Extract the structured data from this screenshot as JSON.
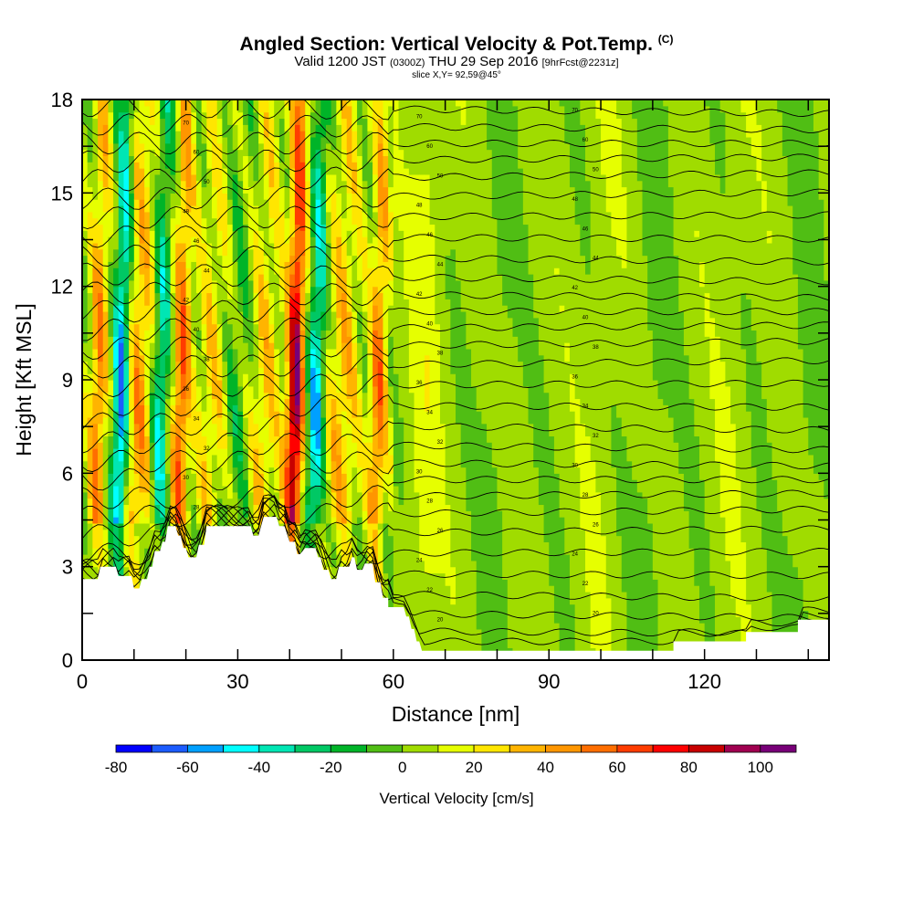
{
  "header": {
    "title": "Angled Section: Vertical Velocity & Pot.Temp.",
    "title_mark": "(C)",
    "valid_prefix": "Valid 1200 JST",
    "valid_utc": "(0300Z)",
    "valid_date": "THU 29 Sep 2016",
    "forecast_tag": "[9hrFcst@2231z]",
    "slice": "slice X,Y= 92,59@45°"
  },
  "chart_data": {
    "type": "heatmap",
    "xlabel": "Distance [nm]",
    "ylabel": "Height [Kft MSL]",
    "xlim": [
      0,
      144
    ],
    "ylim": [
      0,
      18
    ],
    "x_ticks": [
      "0",
      "30",
      "60",
      "90",
      "120"
    ],
    "x_tick_values": [
      0,
      30,
      60,
      90,
      120
    ],
    "y_ticks": [
      "0",
      "3",
      "6",
      "9",
      "12",
      "15",
      "18"
    ],
    "y_tick_values": [
      0,
      3,
      6,
      9,
      12,
      15,
      18
    ],
    "colorbar": {
      "label": "Vertical Velocity [cm/s]",
      "tick_labels": [
        "-80",
        "-60",
        "-40",
        "-20",
        "0",
        "20",
        "40",
        "60",
        "80",
        "100"
      ],
      "tick_values": [
        -80,
        -60,
        -40,
        -20,
        0,
        20,
        40,
        60,
        80,
        100
      ],
      "range": [
        -80,
        110
      ],
      "step": 10,
      "colors": [
        "#0000ff",
        "#1c5cff",
        "#00a0ff",
        "#00ffff",
        "#00e6b4",
        "#00c864",
        "#00b428",
        "#50be14",
        "#a0dc00",
        "#e6ff00",
        "#ffe600",
        "#ffb400",
        "#ff9600",
        "#ff6e00",
        "#ff3c00",
        "#ff0000",
        "#c80000",
        "#a00050",
        "#780078"
      ]
    },
    "vertical_velocity_features": [
      {
        "x_nm": 3,
        "w_cm_s": 45,
        "kind": "updraft"
      },
      {
        "x_nm": 7.5,
        "w_cm_s": -75,
        "kind": "downdraft"
      },
      {
        "x_nm": 10.5,
        "w_cm_s": 40,
        "kind": "updraft"
      },
      {
        "x_nm": 15,
        "w_cm_s": -45,
        "kind": "downdraft"
      },
      {
        "x_nm": 19,
        "w_cm_s": 55,
        "kind": "updraft"
      },
      {
        "x_nm": 25,
        "w_cm_s": 22,
        "kind": "updraft"
      },
      {
        "x_nm": 30,
        "w_cm_s": -15,
        "kind": "downdraft"
      },
      {
        "x_nm": 35,
        "w_cm_s": 25,
        "kind": "updraft"
      },
      {
        "x_nm": 41,
        "w_cm_s": 95,
        "kind": "updraft"
      },
      {
        "x_nm": 45,
        "w_cm_s": -55,
        "kind": "downdraft"
      },
      {
        "x_nm": 50,
        "w_cm_s": 30,
        "kind": "updraft"
      },
      {
        "x_nm": 57,
        "w_cm_s": 48,
        "kind": "updraft"
      },
      {
        "x_nm": 66,
        "w_cm_s": 15,
        "kind": "updraft"
      },
      {
        "x_nm": 80,
        "w_cm_s": -8,
        "kind": "downdraft"
      },
      {
        "x_nm": 100,
        "w_cm_s": 5,
        "kind": "updraft"
      },
      {
        "x_nm": 110,
        "w_cm_s": -10,
        "kind": "downdraft"
      },
      {
        "x_nm": 125,
        "w_cm_s": 4,
        "kind": "updraft"
      },
      {
        "x_nm": 140,
        "w_cm_s": -10,
        "kind": "downdraft"
      }
    ],
    "terrain_kft": [
      [
        0,
        2.6
      ],
      [
        3,
        2.6
      ],
      [
        3.5,
        3.0
      ],
      [
        6.5,
        3.0
      ],
      [
        7,
        2.7
      ],
      [
        9.5,
        2.7
      ],
      [
        10,
        2.3
      ],
      [
        11,
        2.3
      ],
      [
        11.5,
        2.6
      ],
      [
        12.5,
        2.6
      ],
      [
        13,
        3.0
      ],
      [
        13.5,
        3.0
      ],
      [
        14,
        3.5
      ],
      [
        15,
        3.5
      ],
      [
        15.5,
        3.8
      ],
      [
        16,
        3.8
      ],
      [
        16.5,
        4.3
      ],
      [
        18,
        4.3
      ],
      [
        18.5,
        4.0
      ],
      [
        19,
        4.0
      ],
      [
        19.5,
        3.6
      ],
      [
        20,
        3.6
      ],
      [
        20.5,
        3.3
      ],
      [
        22,
        3.3
      ],
      [
        22.5,
        3.7
      ],
      [
        23.5,
        3.7
      ],
      [
        24,
        4.3
      ],
      [
        32.5,
        4.3
      ],
      [
        33,
        4.0
      ],
      [
        34,
        4.0
      ],
      [
        35,
        4.6
      ],
      [
        37.5,
        4.6
      ],
      [
        38,
        4.3
      ],
      [
        39,
        4.3
      ],
      [
        40,
        3.8
      ],
      [
        41,
        3.8
      ],
      [
        41.5,
        3.4
      ],
      [
        42,
        3.4
      ],
      [
        43,
        3.6
      ],
      [
        45,
        3.6
      ],
      [
        45.5,
        3.3
      ],
      [
        46,
        3.3
      ],
      [
        46.5,
        2.9
      ],
      [
        47.5,
        2.9
      ],
      [
        48,
        2.6
      ],
      [
        49,
        2.6
      ],
      [
        49.5,
        3.0
      ],
      [
        51.5,
        3.0
      ],
      [
        52,
        3.3
      ],
      [
        52.5,
        3.3
      ],
      [
        53,
        2.9
      ],
      [
        54,
        2.9
      ],
      [
        54.5,
        3.1
      ],
      [
        56,
        3.1
      ],
      [
        56.5,
        2.5
      ],
      [
        57.5,
        2.5
      ],
      [
        58,
        2.0
      ],
      [
        59,
        2.0
      ],
      [
        59,
        1.7
      ],
      [
        62,
        1.7
      ],
      [
        62.5,
        1.4
      ],
      [
        63,
        1.4
      ],
      [
        63.5,
        1.0
      ],
      [
        64,
        1.0
      ],
      [
        64.5,
        0.6
      ],
      [
        65,
        0.6
      ],
      [
        65.5,
        0.3
      ],
      [
        114,
        0.3
      ],
      [
        114,
        0.6
      ],
      [
        128,
        0.6
      ],
      [
        128,
        0.9
      ],
      [
        138,
        0.9
      ],
      [
        138,
        1.3
      ],
      [
        144,
        1.3
      ]
    ],
    "theta_contour_labels": [
      "70",
      "60",
      "50",
      "48",
      "46",
      "44",
      "42",
      "40",
      "38",
      "36",
      "34",
      "32",
      "30",
      "28",
      "26",
      "24",
      "22",
      "20"
    ]
  }
}
